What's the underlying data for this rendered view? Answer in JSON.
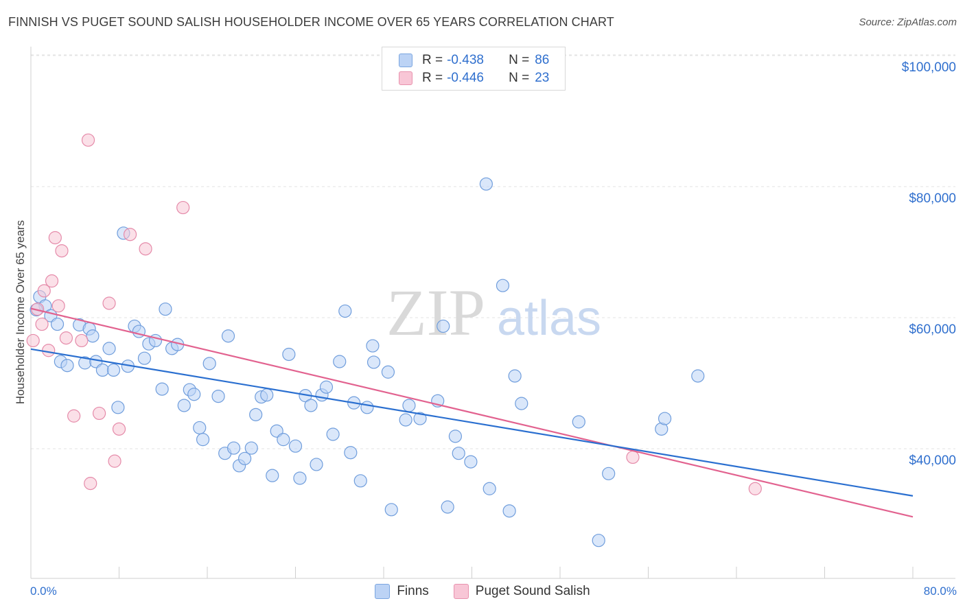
{
  "header": {
    "title": "FINNISH VS PUGET SOUND SALISH HOUSEHOLDER INCOME OVER 65 YEARS CORRELATION CHART",
    "source": "Source: ZipAtlas.com"
  },
  "legend": {
    "rows": [
      {
        "r_label": "R =",
        "r_value": "-0.438",
        "n_label": "N =",
        "n_value": "86"
      },
      {
        "r_label": "R =",
        "r_value": "-0.446",
        "n_label": "N =",
        "n_value": "23"
      }
    ]
  },
  "bottom_legend": {
    "finns": "Finns",
    "salish": "Puget Sound Salish"
  },
  "watermark": {
    "zip": "ZIP",
    "atlas": "atlas"
  },
  "colors": {
    "finns_fill": "#bcd3f5",
    "finns_stroke": "#6f9ddc",
    "finns_line": "#2a6fd0",
    "salish_fill": "#f8c6d6",
    "salish_stroke": "#e58aa9",
    "salish_line": "#e2628f",
    "accent_text": "#2f6fce"
  },
  "chart_data": {
    "type": "scatter",
    "title": "FINNISH VS PUGET SOUND SALISH HOUSEHOLDER INCOME OVER 65 YEARS CORRELATION CHART",
    "xlabel": "",
    "ylabel": "Householder Income Over 65 years",
    "xlim": [
      0,
      80
    ],
    "ylim": [
      20000,
      102000
    ],
    "x_tick_labels": [
      "0.0%",
      "80.0%"
    ],
    "y_ticks": [
      40000,
      60000,
      80000,
      100000
    ],
    "y_tick_labels": [
      "$40,000",
      "$60,000",
      "$80,000",
      "$100,000"
    ],
    "grid": true,
    "legend_position": "top-center",
    "series": [
      {
        "name": "Finns",
        "r": -0.438,
        "n": 86,
        "trend": {
          "x": [
            0,
            80
          ],
          "y": [
            55200,
            32800
          ]
        },
        "points": [
          [
            0.8,
            63200
          ],
          [
            1.3,
            61800
          ],
          [
            1.8,
            60300
          ],
          [
            2.4,
            59000
          ],
          [
            2.7,
            53300
          ],
          [
            3.3,
            52700
          ],
          [
            4.4,
            58900
          ],
          [
            5.3,
            58300
          ],
          [
            5.6,
            57200
          ],
          [
            4.9,
            53100
          ],
          [
            5.9,
            53300
          ],
          [
            6.5,
            52000
          ],
          [
            7.1,
            55300
          ],
          [
            7.5,
            52000
          ],
          [
            7.9,
            46300
          ],
          [
            8.4,
            72900
          ],
          [
            8.8,
            52600
          ],
          [
            9.4,
            58700
          ],
          [
            9.8,
            57900
          ],
          [
            10.3,
            53800
          ],
          [
            10.7,
            56000
          ],
          [
            11.3,
            56500
          ],
          [
            11.9,
            49100
          ],
          [
            12.2,
            61300
          ],
          [
            12.8,
            55300
          ],
          [
            13.3,
            55900
          ],
          [
            13.9,
            46600
          ],
          [
            14.4,
            49000
          ],
          [
            14.8,
            48300
          ],
          [
            15.3,
            43200
          ],
          [
            15.6,
            41400
          ],
          [
            16.2,
            53000
          ],
          [
            17.0,
            48000
          ],
          [
            17.6,
            39300
          ],
          [
            17.9,
            57200
          ],
          [
            18.4,
            40100
          ],
          [
            18.9,
            37400
          ],
          [
            19.4,
            38500
          ],
          [
            20.0,
            40100
          ],
          [
            20.4,
            45200
          ],
          [
            20.9,
            47900
          ],
          [
            21.4,
            48200
          ],
          [
            21.9,
            35900
          ],
          [
            22.3,
            42700
          ],
          [
            22.9,
            41400
          ],
          [
            23.4,
            54400
          ],
          [
            24.0,
            40400
          ],
          [
            24.4,
            35500
          ],
          [
            24.9,
            48100
          ],
          [
            25.4,
            46600
          ],
          [
            25.9,
            37600
          ],
          [
            26.4,
            48200
          ],
          [
            26.8,
            49400
          ],
          [
            27.4,
            42200
          ],
          [
            28.0,
            53300
          ],
          [
            28.5,
            61000
          ],
          [
            29.0,
            39400
          ],
          [
            29.3,
            47000
          ],
          [
            29.9,
            35100
          ],
          [
            30.5,
            46300
          ],
          [
            31.0,
            55700
          ],
          [
            31.1,
            53200
          ],
          [
            32.4,
            51700
          ],
          [
            32.7,
            30700
          ],
          [
            34.0,
            44400
          ],
          [
            34.3,
            46600
          ],
          [
            35.3,
            44600
          ],
          [
            36.9,
            47300
          ],
          [
            37.4,
            58700
          ],
          [
            37.8,
            31100
          ],
          [
            38.5,
            41900
          ],
          [
            38.8,
            39300
          ],
          [
            39.9,
            38000
          ],
          [
            41.3,
            80400
          ],
          [
            41.6,
            33900
          ],
          [
            42.8,
            64900
          ],
          [
            43.4,
            30500
          ],
          [
            43.9,
            51100
          ],
          [
            44.5,
            46900
          ],
          [
            49.7,
            44100
          ],
          [
            51.5,
            26000
          ],
          [
            52.4,
            36200
          ],
          [
            57.2,
            43000
          ],
          [
            57.5,
            44600
          ],
          [
            60.5,
            51100
          ],
          [
            0.5,
            61200
          ]
        ]
      },
      {
        "name": "Puget Sound Salish",
        "r": -0.446,
        "n": 23,
        "trend": {
          "x": [
            0,
            80
          ],
          "y": [
            61400,
            29600
          ]
        },
        "points": [
          [
            0.2,
            56500
          ],
          [
            0.6,
            61300
          ],
          [
            1.0,
            59000
          ],
          [
            1.2,
            64100
          ],
          [
            1.6,
            55000
          ],
          [
            1.9,
            65600
          ],
          [
            2.2,
            72200
          ],
          [
            2.5,
            61800
          ],
          [
            2.8,
            70200
          ],
          [
            3.2,
            56900
          ],
          [
            3.9,
            45000
          ],
          [
            4.6,
            56500
          ],
          [
            5.2,
            87100
          ],
          [
            5.4,
            34700
          ],
          [
            6.2,
            45400
          ],
          [
            7.1,
            62200
          ],
          [
            7.6,
            38100
          ],
          [
            8.0,
            43000
          ],
          [
            9.0,
            72700
          ],
          [
            10.4,
            70500
          ],
          [
            13.8,
            76800
          ],
          [
            54.6,
            38700
          ],
          [
            65.7,
            33900
          ]
        ]
      }
    ]
  }
}
